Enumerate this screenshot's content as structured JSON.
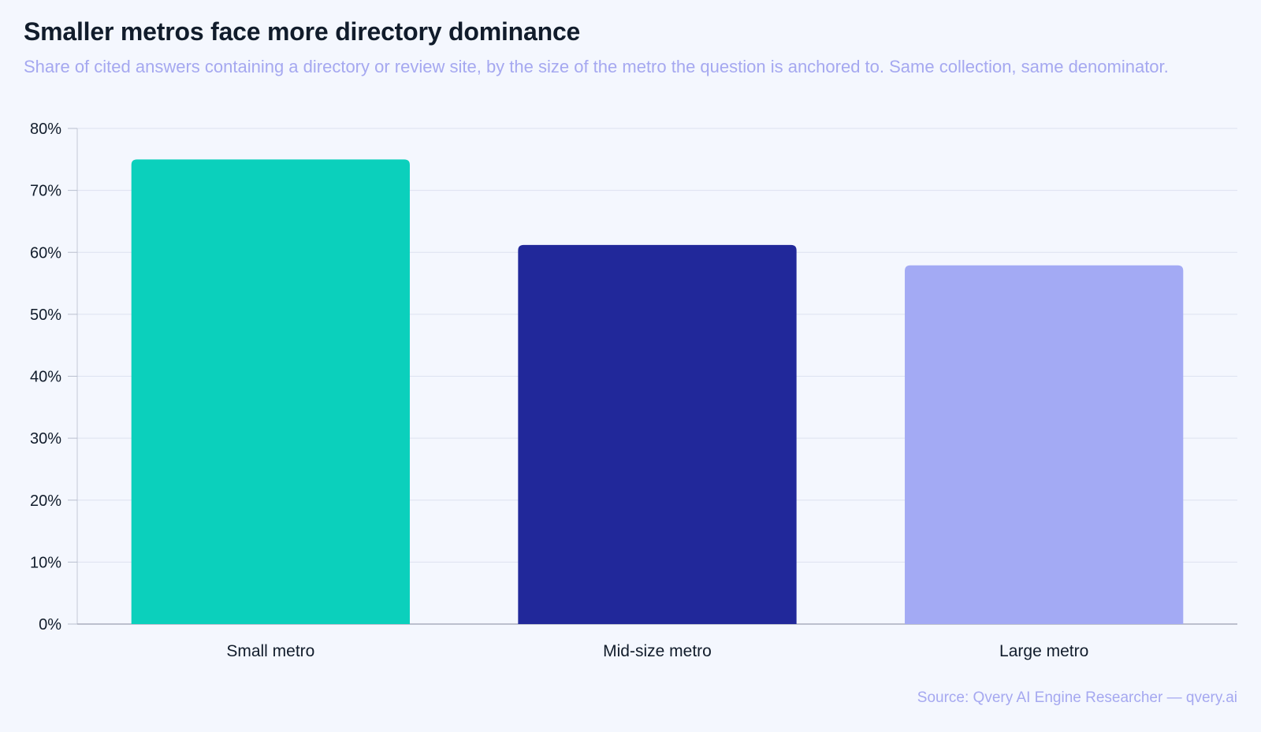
{
  "header": {
    "title": "Smaller metros face more directory dominance",
    "subtitle": "Share of cited answers containing a directory or review site, by the size of the metro the question is anchored to. Same collection, same denominator."
  },
  "footer": {
    "source": "Source: Qvery AI Engine Researcher — qvery.ai"
  },
  "chart_data": {
    "type": "bar",
    "categories": [
      "Small metro",
      "Mid-size metro",
      "Large metro"
    ],
    "values": [
      75,
      61.2,
      57.9
    ],
    "colors": [
      "#0bd0bc",
      "#21289a",
      "#a3aaf4"
    ],
    "ylim": [
      0,
      80
    ],
    "yticks": [
      0,
      10,
      20,
      30,
      40,
      50,
      60,
      70,
      80
    ],
    "ytick_labels": [
      "0%",
      "10%",
      "20%",
      "30%",
      "40%",
      "50%",
      "60%",
      "70%",
      "80%"
    ],
    "grid": true,
    "legend": "none",
    "xlabel": "",
    "ylabel": ""
  }
}
